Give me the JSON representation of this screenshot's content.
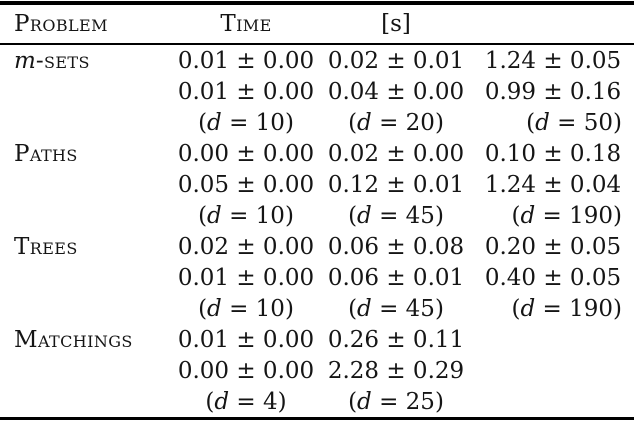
{
  "page": {
    "background": "#ffffff",
    "text_color": "#151515",
    "rule_color": "#000000"
  },
  "table": {
    "headers": {
      "problem": "Problem",
      "time": "Time",
      "unit": "[s]",
      "spare": ""
    },
    "groups": [
      {
        "label_italic_prefix": "m",
        "label": "-sets",
        "rows": [
          [
            "0.01 ± 0.00",
            "0.02 ± 0.01",
            "1.24 ± 0.05"
          ],
          [
            "0.01 ± 0.00",
            "0.04 ± 0.00",
            "0.99 ± 0.16"
          ],
          [
            "(d = 10)",
            "(d = 20)",
            "(d = 50)"
          ]
        ]
      },
      {
        "label_italic_prefix": "",
        "label": "Paths",
        "rows": [
          [
            "0.00 ± 0.00",
            "0.02 ± 0.00",
            "0.10 ± 0.18"
          ],
          [
            "0.05 ± 0.00",
            "0.12 ± 0.01",
            "1.24 ± 0.04"
          ],
          [
            "(d = 10)",
            "(d = 45)",
            "(d = 190)"
          ]
        ]
      },
      {
        "label_italic_prefix": "",
        "label": "Trees",
        "rows": [
          [
            "0.02 ± 0.00",
            "0.06 ± 0.08",
            "0.20 ± 0.05"
          ],
          [
            "0.01 ± 0.00",
            "0.06 ± 0.01",
            "0.40 ± 0.05"
          ],
          [
            "(d = 10)",
            "(d = 45)",
            "(d = 190)"
          ]
        ]
      },
      {
        "label_italic_prefix": "",
        "label": "Matchings",
        "rows": [
          [
            "0.01 ± 0.00",
            "0.26 ± 0.11",
            ""
          ],
          [
            "0.00 ± 0.00",
            "2.28 ± 0.29",
            ""
          ],
          [
            "(d = 4)",
            "(d = 25)",
            ""
          ]
        ]
      }
    ]
  }
}
